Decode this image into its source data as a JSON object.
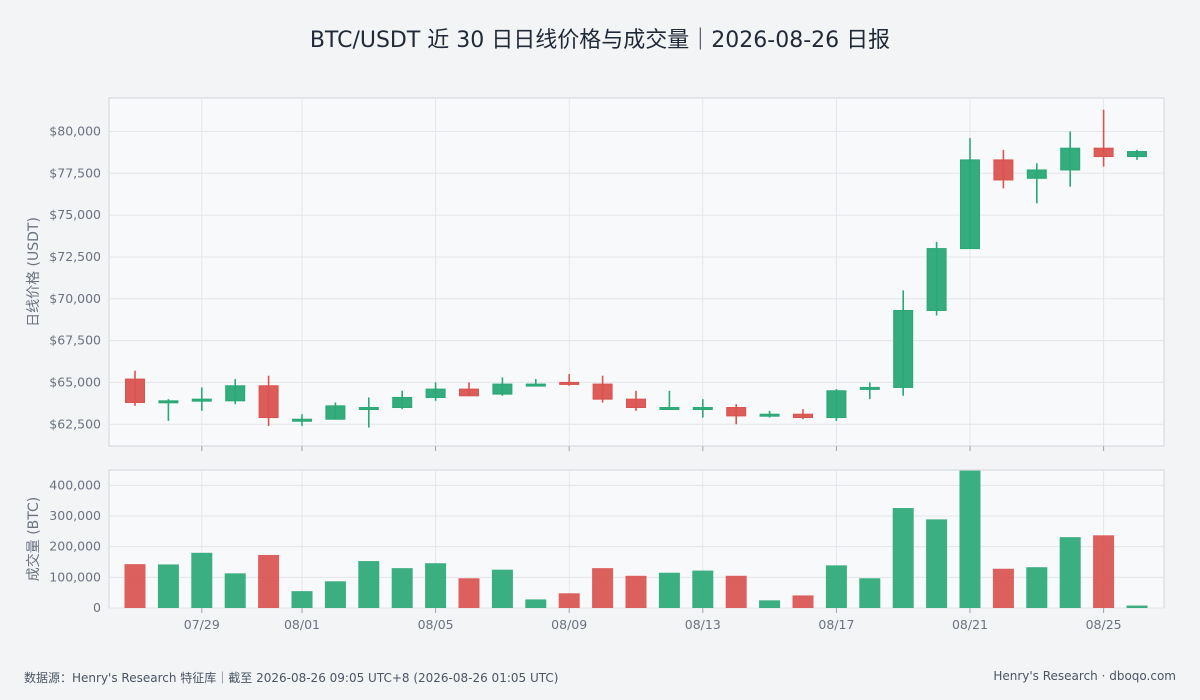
{
  "title": "BTC/USDT 近 30 日日线价格与成交量｜2026-08-26 日报",
  "footer": {
    "left": "数据源：Henry's Research 特征库｜截至 2026-08-26 09:05 UTC+8 (2026-08-26 01:05 UTC)",
    "right": "Henry's Research · dboqo.com"
  },
  "colors": {
    "up": "#2aa876",
    "down": "#d9534f",
    "grid": "#e3e6ea",
    "panel": "#f8f9fb",
    "border": "#d1d5db"
  },
  "chart_data": [
    {
      "type": "candlestick",
      "ylabel": "日线价格 (USDT)",
      "ylim": [
        61200,
        82000
      ],
      "yticks": [
        62500,
        65000,
        67500,
        70000,
        72500,
        75000,
        77500,
        80000
      ],
      "ytick_labels": [
        "$62,500",
        "$65,000",
        "$67,500",
        "$70,000",
        "$72,500",
        "$75,000",
        "$77,500",
        "$80,000"
      ],
      "x": [
        "07-27",
        "07-28",
        "07-29",
        "07-30",
        "07-31",
        "08-01",
        "08-02",
        "08-03",
        "08-04",
        "08-05",
        "08-06",
        "08-07",
        "08-08",
        "08-09",
        "08-10",
        "08-11",
        "08-12",
        "08-13",
        "08-14",
        "08-15",
        "08-16",
        "08-17",
        "08-18",
        "08-19",
        "08-20",
        "08-21",
        "08-22",
        "08-23",
        "08-24",
        "08-25",
        "08-26"
      ],
      "open": [
        65200,
        63800,
        63900,
        63900,
        64800,
        62800,
        62800,
        63500,
        63500,
        64100,
        64600,
        64300,
        64900,
        65000,
        64900,
        64000,
        63500,
        63500,
        63500,
        63000,
        63100,
        62900,
        64600,
        64700,
        69300,
        73000,
        78300,
        77200,
        77700,
        79000,
        78500
      ],
      "high": [
        65700,
        64000,
        64700,
        65200,
        65400,
        63100,
        63800,
        64100,
        64500,
        65000,
        65000,
        65300,
        65200,
        65500,
        65400,
        64500,
        64500,
        64000,
        63700,
        63300,
        63400,
        64600,
        65000,
        70500,
        73400,
        79600,
        78900,
        78100,
        80000,
        81300,
        78900
      ],
      "low": [
        63600,
        62700,
        63300,
        63700,
        62400,
        62400,
        62800,
        62300,
        63400,
        63900,
        64200,
        64200,
        64800,
        64800,
        63800,
        63300,
        63400,
        62900,
        62500,
        62900,
        62800,
        62700,
        64000,
        64200,
        69000,
        73000,
        76600,
        75700,
        76700,
        77900,
        78300
      ],
      "close": [
        63800,
        63900,
        64000,
        64800,
        62900,
        62800,
        63600,
        63500,
        64100,
        64600,
        64200,
        64900,
        64900,
        64900,
        64000,
        63500,
        63500,
        63500,
        63000,
        63100,
        62900,
        64500,
        64700,
        69300,
        73000,
        78300,
        77100,
        77700,
        79000,
        78500,
        78800
      ],
      "xtick_labels": [
        "07-29",
        "08-01",
        "08-05",
        "08-09",
        "08-13",
        "08-17",
        "08-21",
        "08-25"
      ]
    },
    {
      "type": "bar",
      "ylabel": "成交量 (BTC)",
      "ylim": [
        0,
        450000
      ],
      "yticks": [
        0,
        100000,
        200000,
        300000,
        400000
      ],
      "ytick_labels": [
        "0",
        "100,000",
        "200,000",
        "300,000",
        "400,000"
      ],
      "values": [
        143000,
        142000,
        180000,
        113000,
        173000,
        55000,
        87000,
        153000,
        130000,
        146000,
        97000,
        125000,
        28000,
        48000,
        130000,
        105000,
        115000,
        122000,
        105000,
        25000,
        41000,
        139000,
        97000,
        326000,
        289000,
        448000,
        128000,
        133000,
        231000,
        237000,
        8000
      ],
      "xtick_labels": [
        "07/29",
        "08/01",
        "08/05",
        "08/09",
        "08/13",
        "08/17",
        "08/21",
        "08/25"
      ]
    }
  ]
}
